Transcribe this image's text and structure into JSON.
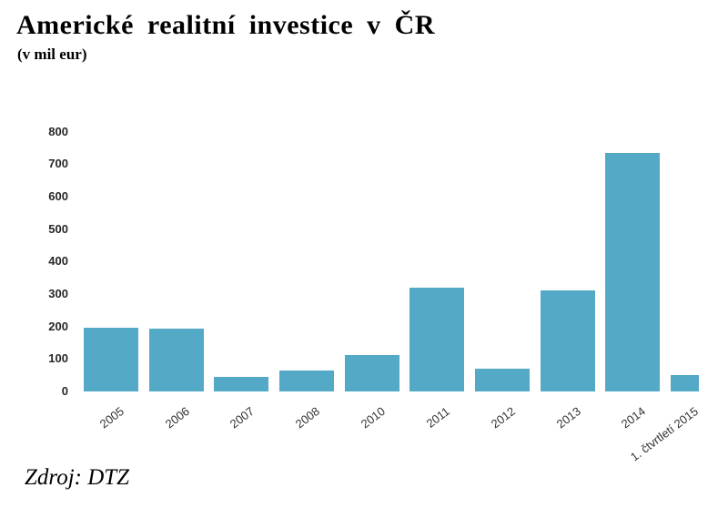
{
  "title": "Americké realitní investice v ČR",
  "subtitle": "(v mil eur)",
  "source": "Zdroj: DTZ",
  "colors": {
    "bar": "#54A9C6",
    "axis_text": "#262626",
    "category_text": "#333333"
  },
  "chart_data": {
    "type": "bar",
    "title": "Americké realitní investice v ČR",
    "subtitle": "(v mil eur)",
    "categories": [
      "2005",
      "2006",
      "2007",
      "2008",
      "2010",
      "2011",
      "2012",
      "2013",
      "2014",
      "1. čtvrtletí 2015"
    ],
    "values": [
      195,
      192,
      45,
      65,
      112,
      320,
      70,
      310,
      735,
      50
    ],
    "xlabel": "",
    "ylabel": "",
    "ylim": [
      0,
      800
    ],
    "ytick_step": 100,
    "grid": false,
    "legend": false,
    "bar_color": "#54A9C6",
    "source": "Zdroj: DTZ",
    "note": "last bar (1. čtvrtletí 2015) rendered half-width at right edge of plot"
  }
}
